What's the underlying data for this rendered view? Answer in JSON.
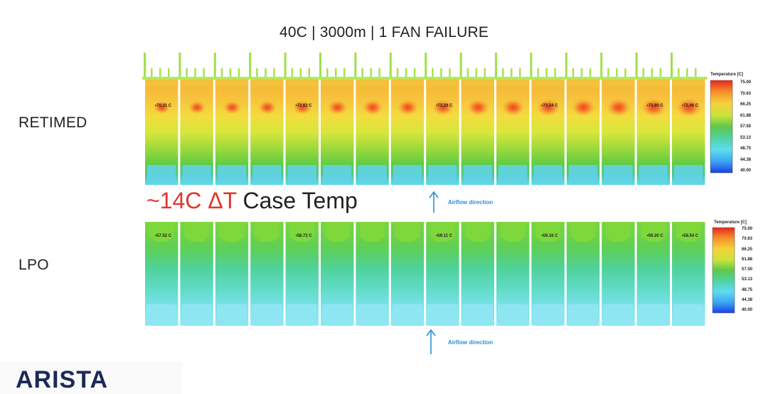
{
  "title": "40C | 3000m | 1 FAN FAILURE",
  "panels": [
    {
      "label": "RETIMED",
      "probes": [
        "70.31 C",
        "72.62 C",
        "73.28 C",
        "73.54 C",
        "73.80 C",
        "72.46 C"
      ]
    },
    {
      "label": "LPO",
      "probes": [
        "57.52 C",
        "58.72 C",
        "59.11 C",
        "59.16 C",
        "59.20 C",
        "58.54 C"
      ]
    }
  ],
  "delta": {
    "prefix": "~14C ΔT",
    "suffix": " Case Temp"
  },
  "airflow_label": "Airflow direction",
  "legend": {
    "title": "Temperature [C]",
    "ticks": [
      "75.00",
      "70.63",
      "66.25",
      "61.88",
      "57.50",
      "53.13",
      "48.75",
      "44.38",
      "40.00"
    ]
  },
  "logo": "ARISTA",
  "colors": {
    "accent_red": "#e0372c",
    "airflow_blue": "#2c8fd6",
    "logo_navy": "#1b2a5a"
  }
}
